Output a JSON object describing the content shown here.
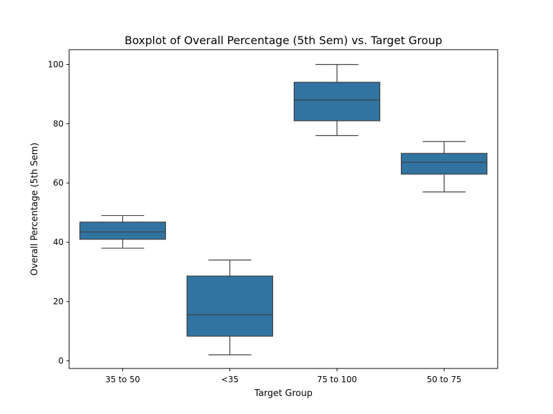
{
  "chart_data": {
    "type": "box",
    "title": "Boxplot of Overall Percentage (5th Sem) vs. Target Group",
    "xlabel": "Target Group",
    "ylabel": "Overall Percentage (5th Sem)",
    "categories": [
      "35 to 50",
      "<35",
      "75 to 100",
      "50 to 75"
    ],
    "boxes": [
      {
        "category": "35 to 50",
        "whisker_low": 38,
        "q1": 41,
        "median": 43.5,
        "q3": 46.8,
        "whisker_high": 49
      },
      {
        "category": "<35",
        "whisker_low": 2,
        "q1": 8.3,
        "median": 15.5,
        "q3": 28.6,
        "whisker_high": 34
      },
      {
        "category": "75 to 100",
        "whisker_low": 76,
        "q1": 81,
        "median": 88,
        "q3": 94,
        "whisker_high": 100
      },
      {
        "category": "50 to 75",
        "whisker_low": 57,
        "q1": 63,
        "median": 67,
        "q3": 70,
        "whisker_high": 74
      }
    ],
    "yticks": [
      0,
      20,
      40,
      60,
      80,
      100
    ],
    "ytick_labels": [
      "0",
      "20",
      "40",
      "60",
      "80",
      "100"
    ],
    "ylim": [
      -2.6,
      105
    ],
    "box_color": "#3274a1",
    "line_color": "#3d3d3d",
    "grid": false,
    "legend": "none"
  }
}
